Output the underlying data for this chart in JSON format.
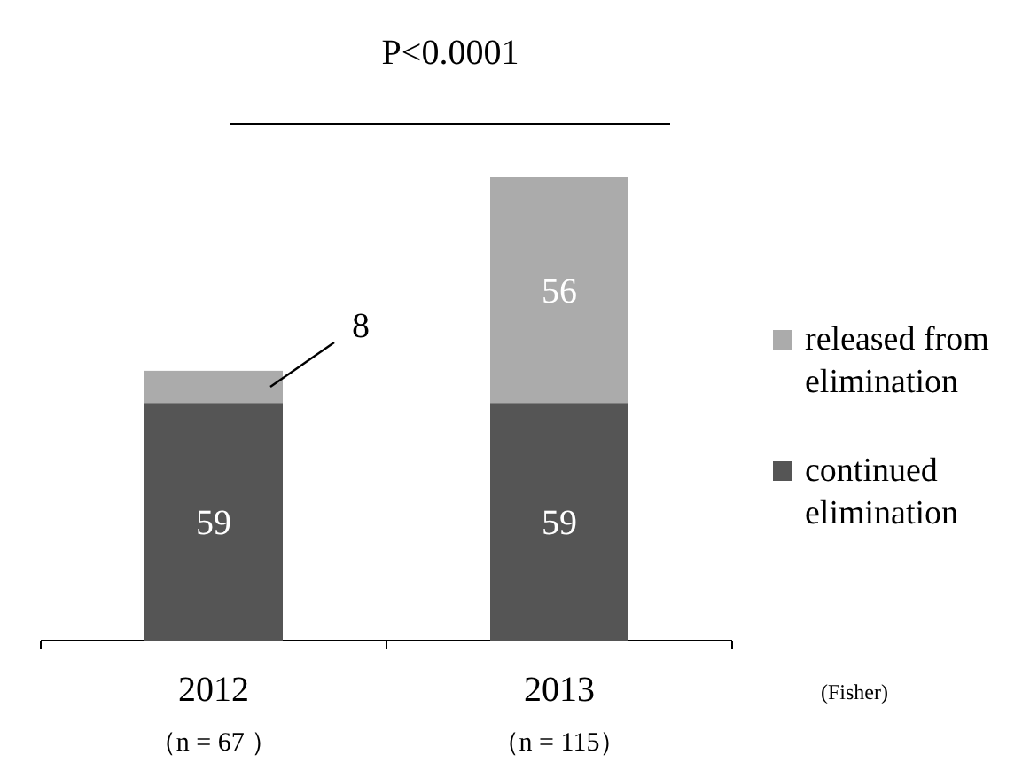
{
  "chart_data": {
    "type": "bar",
    "stacked": true,
    "categories": [
      "2012\n（n = 67 ）",
      "2013\n（n = 115）"
    ],
    "series": [
      {
        "name": "continued elimination",
        "color": "#555555",
        "values": [
          59,
          59
        ]
      },
      {
        "name": "released from elimination",
        "color": "#ababab",
        "values": [
          8,
          56
        ]
      }
    ],
    "data_labels": true,
    "legend": "right",
    "annotations": [
      "P<0.0001",
      "(Fisher)"
    ]
  }
}
